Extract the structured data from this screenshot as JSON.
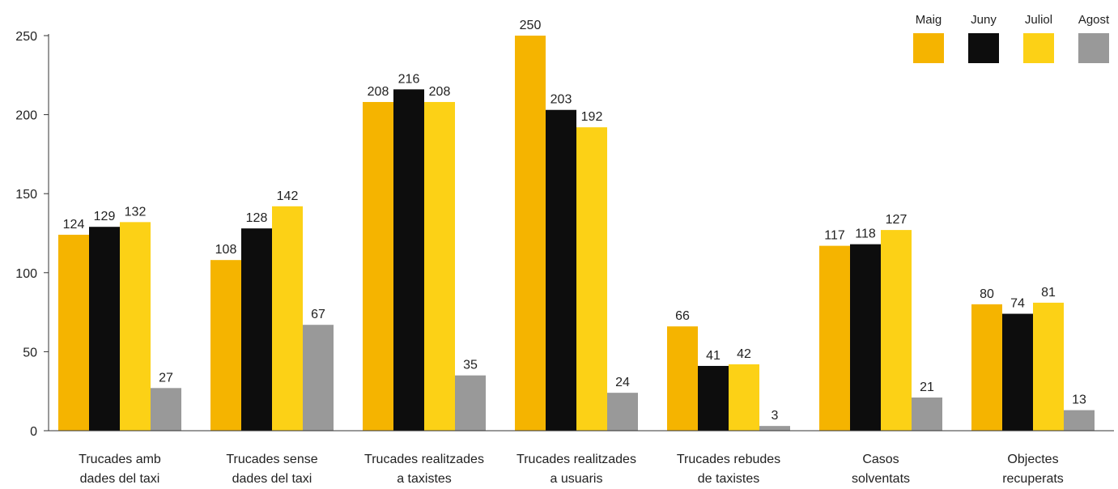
{
  "chart_data": {
    "type": "bar",
    "title": "",
    "xlabel": "",
    "ylabel": "",
    "ylim": [
      0,
      250
    ],
    "yticks": [
      0,
      50,
      100,
      150,
      200,
      250
    ],
    "grid": false,
    "legend_position": "top-right",
    "categories": [
      [
        "Trucades amb",
        "dades del taxi"
      ],
      [
        "Trucades sense",
        "dades del taxi"
      ],
      [
        "Trucades realitzades",
        "a taxistes"
      ],
      [
        "Trucades realitzades",
        "a usuaris"
      ],
      [
        "Trucades rebudes",
        "de taxistes"
      ],
      [
        "Casos",
        "solventats"
      ],
      [
        "Objectes",
        "recuperats"
      ]
    ],
    "series": [
      {
        "name": "Maig",
        "color": "#f5b400",
        "values": [
          124,
          108,
          208,
          250,
          66,
          117,
          80
        ]
      },
      {
        "name": "Juny",
        "color": "#0d0d0d",
        "values": [
          129,
          128,
          216,
          203,
          41,
          118,
          74
        ]
      },
      {
        "name": "Juliol",
        "color": "#fcd116",
        "values": [
          132,
          142,
          208,
          192,
          42,
          127,
          81
        ]
      },
      {
        "name": "Agost",
        "color": "#999999",
        "values": [
          27,
          67,
          35,
          24,
          3,
          21,
          13
        ]
      }
    ]
  }
}
